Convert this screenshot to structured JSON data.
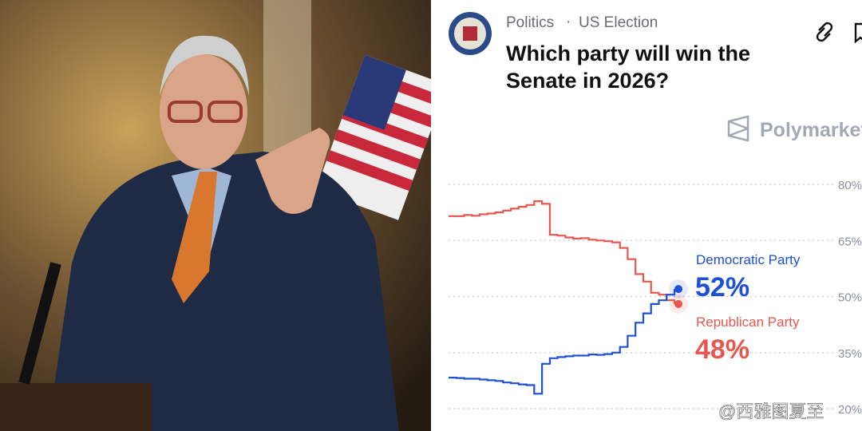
{
  "breadcrumb": [
    "Politics",
    "US Election"
  ],
  "brand": "Polymarket",
  "watermark": "@西雅图夏至",
  "chart_data": {
    "type": "line",
    "title": "Which party will win the Senate in 2026?",
    "ylim": [
      20,
      80
    ],
    "yticks": [
      {
        "value": 20,
        "label": "20%"
      },
      {
        "value": 35,
        "label": "35%"
      },
      {
        "value": 50,
        "label": "50%"
      },
      {
        "value": 65,
        "label": "65%"
      },
      {
        "value": 80,
        "label": "80%"
      }
    ],
    "grid": true,
    "series": [
      {
        "name": "Republican Party",
        "color": "#e8574f",
        "values": [
          71.5,
          71.5,
          71.8,
          71.6,
          72,
          72.2,
          72.5,
          73,
          73.5,
          74,
          74.5,
          75.5,
          74.8,
          66.5,
          66.3,
          65.8,
          65.5,
          65.6,
          65.2,
          65,
          64.8,
          64.5,
          63,
          60,
          56,
          54,
          51,
          50.5,
          49,
          48
        ],
        "value_labels": [
          null,
          null,
          null,
          null,
          null,
          null,
          null,
          null,
          null,
          null,
          null,
          null,
          null,
          null,
          null,
          null,
          null,
          null,
          null,
          null,
          null,
          null,
          null,
          null,
          null,
          null,
          null,
          null,
          null,
          "48%"
        ]
      },
      {
        "name": "Democratic Party",
        "color": "#1e50d6",
        "values": [
          28.3,
          28.2,
          28,
          28,
          27.8,
          27.6,
          27.4,
          27,
          26.8,
          26.5,
          26.3,
          24,
          32,
          33.5,
          33.8,
          34,
          34.2,
          34.2,
          34.5,
          34.4,
          34.6,
          35,
          36.5,
          39.5,
          43,
          45.5,
          48,
          49,
          50.5,
          52
        ],
        "value_labels": [
          null,
          null,
          null,
          null,
          null,
          null,
          null,
          null,
          null,
          null,
          null,
          null,
          null,
          null,
          null,
          null,
          null,
          null,
          null,
          null,
          null,
          null,
          null,
          null,
          null,
          null,
          null,
          null,
          null,
          "52%"
        ]
      }
    ]
  }
}
